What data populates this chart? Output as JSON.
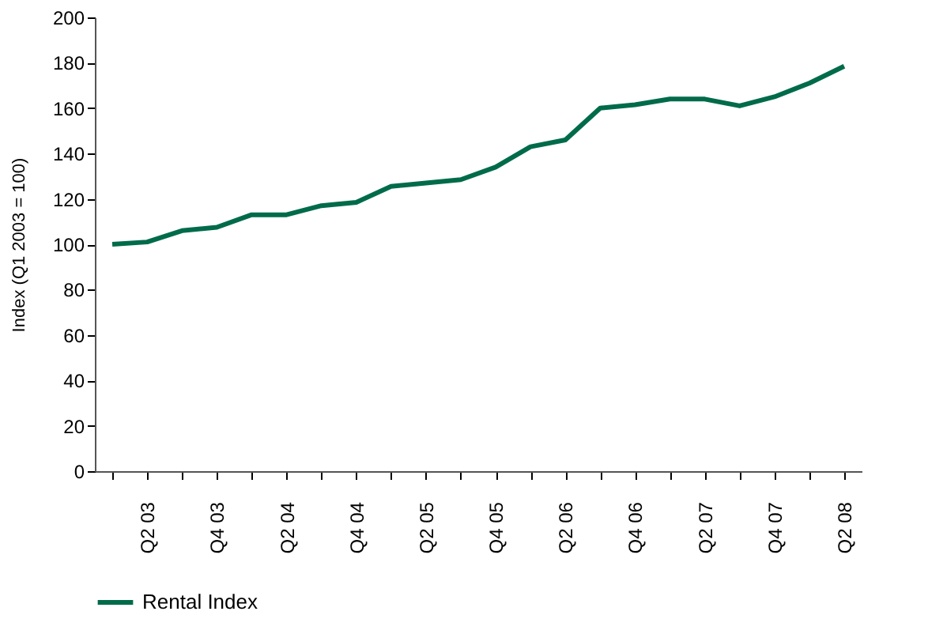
{
  "chart_data": {
    "type": "line",
    "ylabel": "Index (Q1 2003 = 100)",
    "categories": [
      null,
      "Q2 03",
      null,
      "Q4 03",
      null,
      "Q2 04",
      null,
      "Q4 04",
      null,
      "Q2 05",
      null,
      "Q4 05",
      null,
      "Q2 06",
      null,
      "Q4 06",
      null,
      "Q2 07",
      null,
      "Q4 07",
      null,
      "Q2 08"
    ],
    "series": [
      {
        "name": "Rental Index",
        "color": "#006b4a",
        "values": [
          100,
          101,
          106,
          107.5,
          113,
          113,
          117,
          118.5,
          125.5,
          127,
          128.5,
          134,
          143,
          146,
          160,
          161.5,
          164,
          164,
          161,
          165,
          171,
          178.5
        ]
      }
    ],
    "ylim": [
      0,
      200
    ],
    "yticks": [
      0,
      20,
      40,
      60,
      80,
      100,
      120,
      140,
      160,
      180,
      200
    ],
    "grid": false,
    "legend": "bottom",
    "marker": "none",
    "line_style": "solid"
  }
}
